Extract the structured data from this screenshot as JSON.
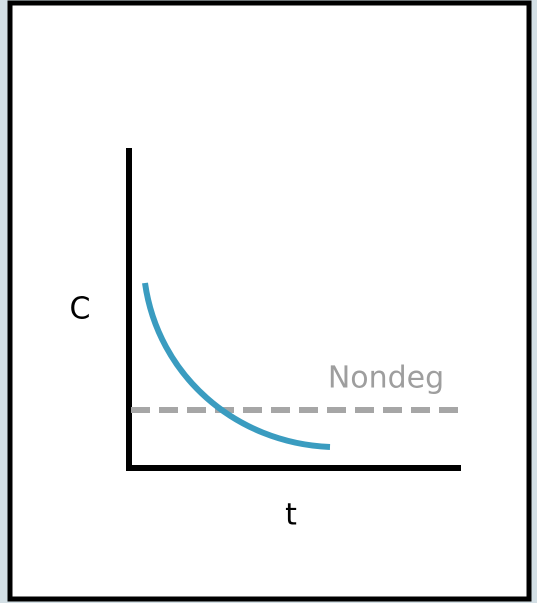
{
  "labels": {
    "y_axis": "C",
    "x_axis": "t",
    "reference_line": "Nondeg"
  }
}
